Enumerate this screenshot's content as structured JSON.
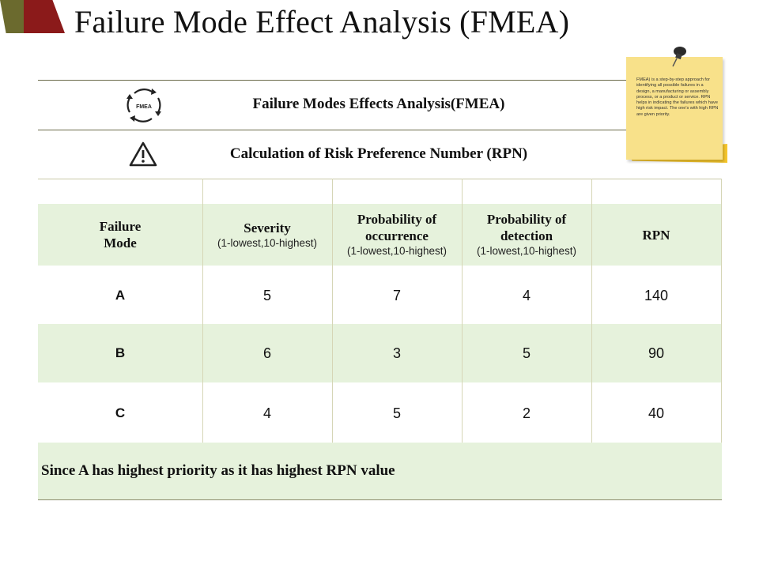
{
  "page": {
    "title": "Failure Mode Effect Analysis (FMEA)"
  },
  "rows": {
    "fmea_title": "Failure Modes Effects Analysis(FMEA)",
    "fmea_icon_text": "FMEA",
    "rpn_title": "Calculation of Risk Preference Number (RPN)"
  },
  "note": {
    "text": "FMEA) is a step-by-step approach for identifying all possible failures in a design, a manufacturing or assembly process, or a product or service. RPN helps in indicating the failures which have high risk impact. The one's with high RPN are given priority."
  },
  "table": {
    "headers": [
      {
        "title": "Failure\nMode",
        "sub": ""
      },
      {
        "title": "Severity",
        "sub": "(1-lowest,10-highest)"
      },
      {
        "title": "Probability of occurrence",
        "sub": "(1-lowest,10-highest)"
      },
      {
        "title": "Probability of detection",
        "sub": "(1-lowest,10-highest)"
      },
      {
        "title": "RPN",
        "sub": ""
      }
    ],
    "rows": [
      {
        "mode": "A",
        "severity": "5",
        "occurrence": "7",
        "detection": "4",
        "rpn": "140"
      },
      {
        "mode": "B",
        "severity": "6",
        "occurrence": "3",
        "detection": "5",
        "rpn": "90"
      },
      {
        "mode": "C",
        "severity": "4",
        "occurrence": "5",
        "detection": "2",
        "rpn": "40"
      }
    ],
    "footer": "Since A has highest priority as it has highest RPN value"
  },
  "colors": {
    "band": "#e6f2dc",
    "accent_olive": "#6b6a2e",
    "accent_red": "#8b1a1a",
    "note": "#f8e18a"
  },
  "icons": {
    "cycle": "cycle-arrows-icon",
    "warning": "warning-triangle-icon",
    "pin": "pushpin-icon"
  }
}
